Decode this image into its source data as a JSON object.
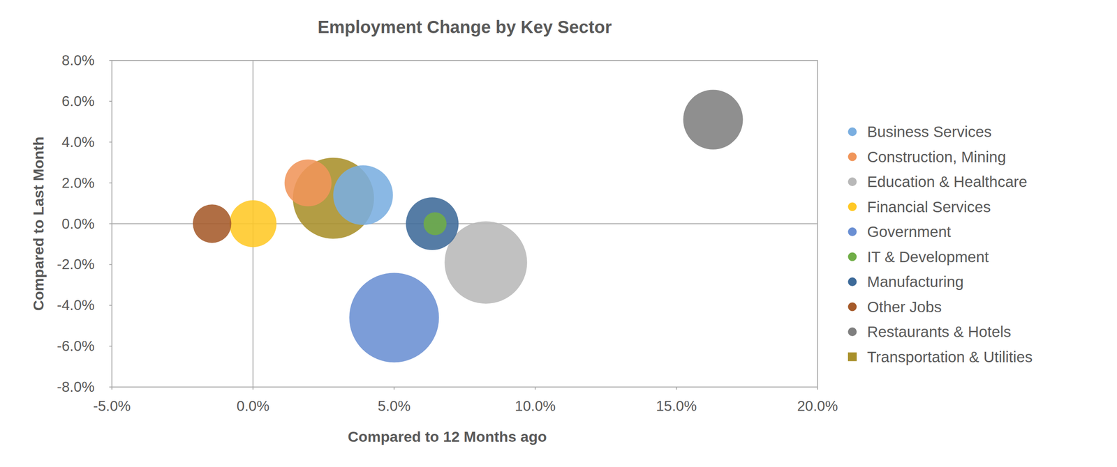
{
  "chart_data": {
    "type": "bubble",
    "title": "Employment Change by Key Sector",
    "x_label": "Compared to 12 Months ago",
    "y_label": "Compared to Last Month",
    "xlim": [
      -5,
      20
    ],
    "ylim": [
      -8,
      8
    ],
    "xticks": [
      {
        "value": -5,
        "label": "-5.0%"
      },
      {
        "value": 0,
        "label": "0.0%"
      },
      {
        "value": 5,
        "label": "5.0%"
      },
      {
        "value": 10,
        "label": "10.0%"
      },
      {
        "value": 15,
        "label": "15.0%"
      },
      {
        "value": 20,
        "label": "20.0%"
      }
    ],
    "yticks": [
      {
        "value": -8,
        "label": "-8.0%"
      },
      {
        "value": -6,
        "label": "-6.0%"
      },
      {
        "value": -4,
        "label": "-4.0%"
      },
      {
        "value": -2,
        "label": "-2.0%"
      },
      {
        "value": 0,
        "label": "0.0%"
      },
      {
        "value": 2,
        "label": "2.0%"
      },
      {
        "value": 4,
        "label": "4.0%"
      },
      {
        "value": 6,
        "label": "6.0%"
      },
      {
        "value": 8,
        "label": "8.0%"
      }
    ],
    "grid": false,
    "legend": "right",
    "series": [
      {
        "name": "Business Services",
        "color": "#7aaee0",
        "x": [
          3.9
        ],
        "values": [
          1.4
        ],
        "sizes": [
          17.6
        ]
      },
      {
        "name": "Construction, Mining",
        "color": "#f0955a",
        "x": [
          1.95
        ],
        "values": [
          2.0
        ],
        "sizes": [
          10.9
        ]
      },
      {
        "name": "Education & Healthcare",
        "color": "#b8b8b8",
        "x": [
          8.25
        ],
        "values": [
          -1.9
        ],
        "sizes": [
          33.6
        ]
      },
      {
        "name": "Financial Services",
        "color": "#ffc825",
        "x": [
          0.0
        ],
        "values": [
          0.0
        ],
        "sizes": [
          10.9
        ]
      },
      {
        "name": "Government",
        "color": "#6a8fd3",
        "x": [
          5.0
        ],
        "values": [
          -4.6
        ],
        "sizes": [
          39.7
        ]
      },
      {
        "name": "IT & Development",
        "color": "#70ad47",
        "x": [
          6.45
        ],
        "values": [
          0.0
        ],
        "sizes": [
          2.6
        ]
      },
      {
        "name": "Manufacturing",
        "color": "#3d6a99",
        "x": [
          6.35
        ],
        "values": [
          0.0
        ],
        "sizes": [
          13.7
        ]
      },
      {
        "name": "Other Jobs",
        "color": "#a55a2a",
        "x": [
          -1.45
        ],
        "values": [
          0.0
        ],
        "sizes": [
          7.3
        ]
      },
      {
        "name": "Restaurants & Hotels",
        "color": "#7f7f7f",
        "x": [
          16.3
        ],
        "values": [
          5.1
        ],
        "sizes": [
          17.6
        ]
      },
      {
        "name": "Transportation & Utilities",
        "color": "#a8902a",
        "x": [
          2.85
        ],
        "values": [
          1.25
        ],
        "sizes": [
          32.5
        ],
        "marker": "square"
      }
    ]
  }
}
